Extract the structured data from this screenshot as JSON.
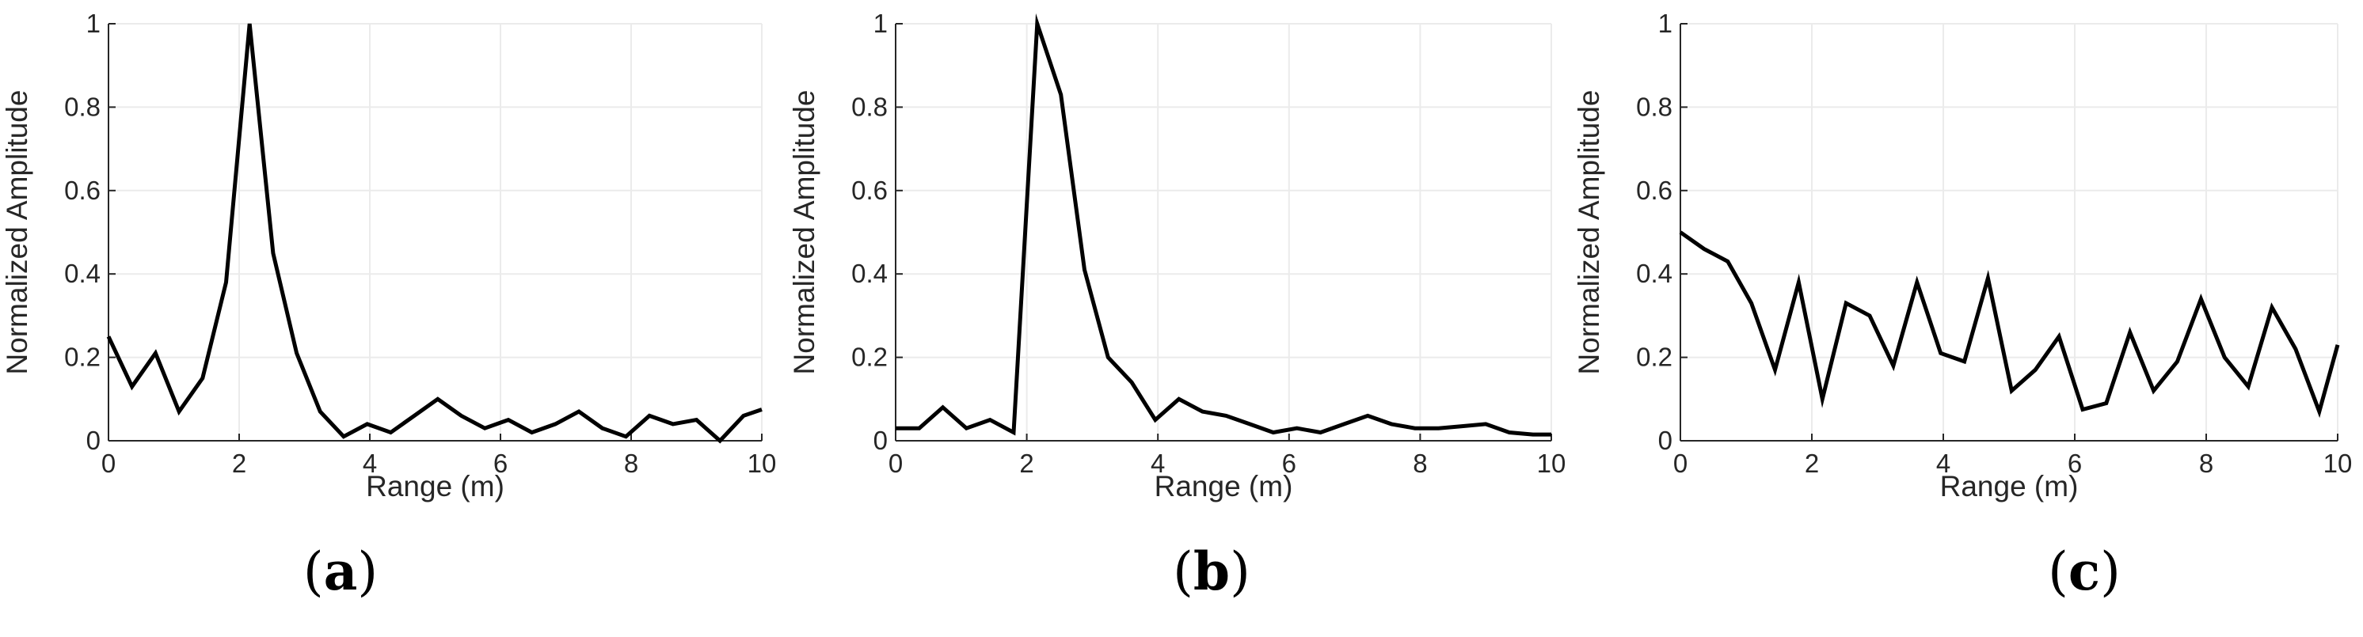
{
  "figure": {
    "colors": {
      "line": "#000000",
      "grid": "#ebebeb",
      "axis": "#262626",
      "text": "#262626"
    }
  },
  "chart_data": [
    {
      "type": "line",
      "panel_label": "a",
      "xlabel": "Range (m)",
      "ylabel": "Normalized Amplitude",
      "xlim": [
        0,
        10
      ],
      "ylim": [
        0,
        1
      ],
      "xticks": [
        0,
        2,
        4,
        6,
        8,
        10
      ],
      "yticks": [
        0,
        0.2,
        0.4,
        0.6,
        0.8,
        1
      ],
      "xtick_labels": [
        "0",
        "2",
        "4",
        "6",
        "8",
        "10"
      ],
      "ytick_labels": [
        "0",
        "0.2",
        "0.4",
        "0.6",
        "0.8",
        "1"
      ],
      "grid": true,
      "series": [
        {
          "x": [
            0,
            0.36,
            0.72,
            1.08,
            1.44,
            1.8,
            2.16,
            2.52,
            2.88,
            3.24,
            3.6,
            3.96,
            4.32,
            4.68,
            5.04,
            5.4,
            5.76,
            6.12,
            6.48,
            6.84,
            7.2,
            7.56,
            7.92,
            8.28,
            8.64,
            9.0,
            9.36,
            9.72,
            10.0
          ],
          "y": [
            0.25,
            0.13,
            0.21,
            0.07,
            0.15,
            0.38,
            1.0,
            0.45,
            0.21,
            0.07,
            0.01,
            0.04,
            0.02,
            0.06,
            0.1,
            0.06,
            0.03,
            0.05,
            0.02,
            0.04,
            0.07,
            0.03,
            0.01,
            0.06,
            0.04,
            0.05,
            0.0,
            0.06,
            0.075
          ]
        }
      ]
    },
    {
      "type": "line",
      "panel_label": "b",
      "xlabel": "Range (m)",
      "ylabel": "Normalized Amplitude",
      "xlim": [
        0,
        10
      ],
      "ylim": [
        0,
        1
      ],
      "xticks": [
        0,
        2,
        4,
        6,
        8,
        10
      ],
      "yticks": [
        0,
        0.2,
        0.4,
        0.6,
        0.8,
        1
      ],
      "xtick_labels": [
        "0",
        "2",
        "4",
        "6",
        "8",
        "10"
      ],
      "ytick_labels": [
        "0",
        "0.2",
        "0.4",
        "0.6",
        "0.8",
        "1"
      ],
      "grid": true,
      "series": [
        {
          "x": [
            0,
            0.36,
            0.72,
            1.08,
            1.44,
            1.8,
            2.16,
            2.52,
            2.88,
            3.24,
            3.6,
            3.96,
            4.32,
            4.68,
            5.04,
            5.4,
            5.76,
            6.12,
            6.48,
            6.84,
            7.2,
            7.56,
            7.92,
            8.28,
            8.64,
            9.0,
            9.36,
            9.72,
            10.0
          ],
          "y": [
            0.03,
            0.03,
            0.08,
            0.03,
            0.05,
            0.02,
            1.0,
            0.83,
            0.41,
            0.2,
            0.14,
            0.05,
            0.1,
            0.07,
            0.06,
            0.04,
            0.02,
            0.03,
            0.02,
            0.04,
            0.06,
            0.04,
            0.03,
            0.03,
            0.035,
            0.04,
            0.02,
            0.015,
            0.015
          ]
        }
      ]
    },
    {
      "type": "line",
      "panel_label": "c",
      "xlabel": "Range (m)",
      "ylabel": "Normalized Amplitude",
      "xlim": [
        0,
        10
      ],
      "ylim": [
        0,
        1
      ],
      "xticks": [
        0,
        2,
        4,
        6,
        8,
        10
      ],
      "yticks": [
        0,
        0.2,
        0.4,
        0.6,
        0.8,
        1
      ],
      "xtick_labels": [
        "0",
        "2",
        "4",
        "6",
        "8",
        "10"
      ],
      "ytick_labels": [
        "0",
        "0.2",
        "0.4",
        "0.6",
        "0.8",
        "1"
      ],
      "grid": true,
      "series": [
        {
          "x": [
            0,
            0.36,
            0.72,
            1.08,
            1.44,
            1.8,
            2.16,
            2.52,
            2.88,
            3.24,
            3.6,
            3.96,
            4.32,
            4.68,
            5.04,
            5.4,
            5.76,
            6.12,
            6.48,
            6.84,
            7.2,
            7.56,
            7.92,
            8.28,
            8.64,
            9.0,
            9.36,
            9.72,
            10.0
          ],
          "y": [
            0.5,
            0.46,
            0.43,
            0.33,
            0.17,
            0.38,
            0.1,
            0.33,
            0.3,
            0.18,
            0.38,
            0.21,
            0.19,
            0.39,
            0.12,
            0.17,
            0.25,
            0.075,
            0.09,
            0.26,
            0.12,
            0.19,
            0.34,
            0.2,
            0.13,
            0.32,
            0.22,
            0.07,
            0.23
          ]
        }
      ]
    }
  ]
}
